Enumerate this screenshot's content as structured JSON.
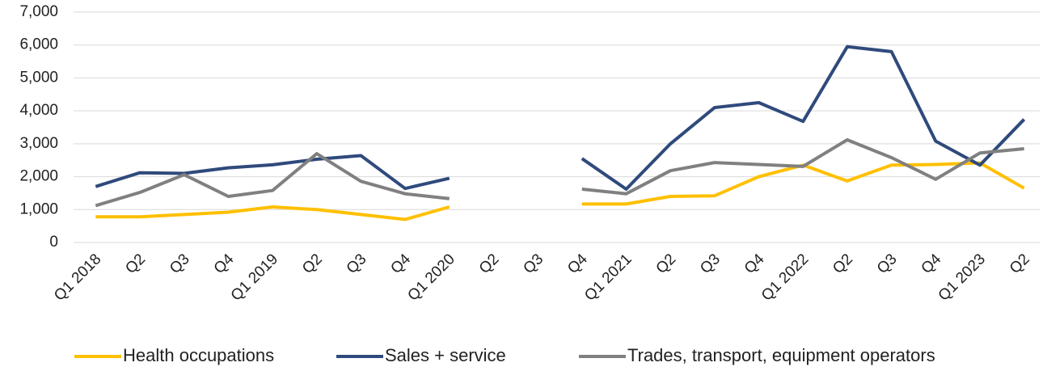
{
  "chart_data": {
    "type": "line",
    "categories": [
      "Q1 2018",
      "Q2",
      "Q3",
      "Q4",
      "Q1 2019",
      "Q2",
      "Q3",
      "Q4",
      "Q1 2020",
      "Q2",
      "Q3",
      "Q4",
      "Q1 2021",
      "Q2",
      "Q3",
      "Q4",
      "Q1 2022",
      "Q2",
      "Q3",
      "Q4",
      "Q1 2023",
      "Q2"
    ],
    "series": [
      {
        "name": "Health occupations",
        "color": "#ffc000",
        "values": [
          780,
          780,
          850,
          920,
          1080,
          1000,
          850,
          700,
          1080,
          null,
          null,
          1170,
          1170,
          1400,
          1420,
          2000,
          2350,
          1870,
          2350,
          2370,
          2420,
          1650
        ]
      },
      {
        "name": "Sales + service",
        "color": "#2f4a7c",
        "values": [
          1700,
          2120,
          2100,
          2270,
          2360,
          2530,
          2640,
          1640,
          1950,
          null,
          null,
          2550,
          1620,
          3000,
          4100,
          4250,
          3680,
          5950,
          5800,
          3080,
          2350,
          3740
        ]
      },
      {
        "name": "Trades, transport, equipment operators",
        "color": "#808080",
        "values": [
          1120,
          1520,
          2060,
          1400,
          1580,
          2700,
          1860,
          1480,
          1330,
          null,
          null,
          1620,
          1480,
          2180,
          2430,
          2370,
          2310,
          3120,
          2580,
          1920,
          2720,
          2850
        ]
      }
    ],
    "ylim": [
      0,
      7000
    ],
    "yticks": [
      0,
      {
        "value": 1000,
        "label": "1,000"
      },
      {
        "value": 2000,
        "label": "2,000"
      },
      {
        "value": 3000,
        "label": "3,000"
      },
      {
        "value": 4000,
        "label": "4,000"
      },
      {
        "value": 5000,
        "label": "5,000"
      },
      {
        "value": 6000,
        "label": "6,000"
      },
      {
        "value": 7000,
        "label": "7,000"
      }
    ],
    "grid": true,
    "legend": "bottom"
  }
}
